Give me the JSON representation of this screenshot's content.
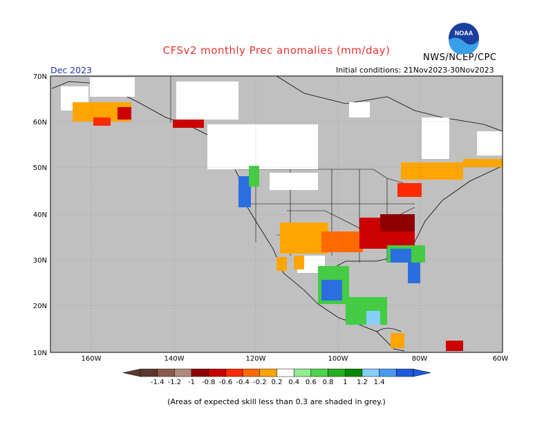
{
  "header": {
    "title": "CFSv2 monthly Prec anomalies (mm/day)",
    "organization": "NWS/NCEP/CPC",
    "month": "Dec 2023",
    "initial_conditions": "Initial conditions: 21Nov2023-30Nov2023"
  },
  "logo": {
    "text": "NOAA"
  },
  "axes": {
    "lat_labels": [
      "70N",
      "60N",
      "50N",
      "40N",
      "30N",
      "20N",
      "10N"
    ],
    "lon_labels": [
      "160W",
      "140W",
      "120W",
      "100W",
      "80W",
      "60W"
    ]
  },
  "colorbar": {
    "labels": [
      "-1.4",
      "-1.2",
      "-1",
      "-0.8",
      "-0.6",
      "-0.4",
      "-0.2",
      "0.2",
      "0.4",
      "0.6",
      "0.8",
      "1",
      "1.2",
      "1.4"
    ],
    "colors": [
      "#5a3a2e",
      "#8b5a4a",
      "#b08a7a",
      "#8e0000",
      "#c80000",
      "#ff2a00",
      "#ff6a00",
      "#ffa500",
      "#ffffff",
      "#90ee90",
      "#4cd44c",
      "#22b022",
      "#008a00",
      "#87cefa",
      "#4a9af0",
      "#1e5adc"
    ]
  },
  "map_colors": {
    "ocean_grey": "#c0c0c0",
    "no_signal": "#ffffff",
    "dry_orange": "#ffa500",
    "dry_red": "#cc0000",
    "wet_green": "#44cc44",
    "wet_blue": "#2a6ee0"
  },
  "footnote": "(Areas of expected skill less than 0.3 are shaded in grey.)"
}
